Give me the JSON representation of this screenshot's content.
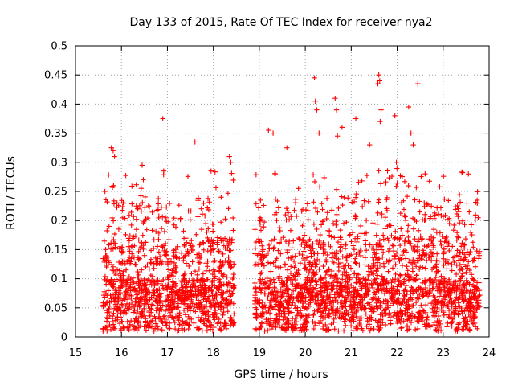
{
  "chart_data": {
    "type": "scatter",
    "title": "Day 133 of 2015, Rate Of TEC Index for receiver nya2",
    "xlabel": "GPS time / hours",
    "ylabel": "ROTI / TECUs",
    "xlim": [
      15,
      24
    ],
    "ylim": [
      0,
      0.5
    ],
    "xticks": [
      15,
      16,
      17,
      18,
      19,
      20,
      21,
      22,
      23,
      24
    ],
    "yticks": [
      0,
      0.05,
      0.1,
      0.15,
      0.2,
      0.25,
      0.3,
      0.35,
      0.4,
      0.45,
      0.5
    ],
    "ytick_labels": [
      "0",
      "0.05",
      "0.1",
      "0.15",
      "0.2",
      "0.25",
      "0.3",
      "0.35",
      "0.4",
      "0.45",
      "0.5"
    ],
    "grid": true,
    "marker": "+",
    "marker_color": "#ff0000",
    "segments": [
      {
        "x_start": 15.6,
        "x_end": 18.45
      },
      {
        "x_start": 18.9,
        "x_end": 23.8
      }
    ],
    "outliers": [
      {
        "x": 15.78,
        "y": 0.325
      },
      {
        "x": 15.82,
        "y": 0.32
      },
      {
        "x": 15.85,
        "y": 0.31
      },
      {
        "x": 15.83,
        "y": 0.26
      },
      {
        "x": 16.45,
        "y": 0.295
      },
      {
        "x": 16.9,
        "y": 0.375
      },
      {
        "x": 16.92,
        "y": 0.285
      },
      {
        "x": 17.6,
        "y": 0.335
      },
      {
        "x": 17.95,
        "y": 0.285
      },
      {
        "x": 18.35,
        "y": 0.31
      },
      {
        "x": 18.38,
        "y": 0.3
      },
      {
        "x": 19.2,
        "y": 0.355
      },
      {
        "x": 19.3,
        "y": 0.35
      },
      {
        "x": 19.6,
        "y": 0.325
      },
      {
        "x": 20.2,
        "y": 0.445
      },
      {
        "x": 20.22,
        "y": 0.405
      },
      {
        "x": 20.25,
        "y": 0.39
      },
      {
        "x": 20.3,
        "y": 0.35
      },
      {
        "x": 20.65,
        "y": 0.41
      },
      {
        "x": 20.68,
        "y": 0.39
      },
      {
        "x": 20.7,
        "y": 0.345
      },
      {
        "x": 20.8,
        "y": 0.36
      },
      {
        "x": 21.1,
        "y": 0.375
      },
      {
        "x": 21.4,
        "y": 0.33
      },
      {
        "x": 21.6,
        "y": 0.45
      },
      {
        "x": 21.62,
        "y": 0.44
      },
      {
        "x": 21.58,
        "y": 0.435
      },
      {
        "x": 21.65,
        "y": 0.39
      },
      {
        "x": 21.63,
        "y": 0.37
      },
      {
        "x": 21.95,
        "y": 0.38
      },
      {
        "x": 22.25,
        "y": 0.395
      },
      {
        "x": 22.3,
        "y": 0.35
      },
      {
        "x": 22.35,
        "y": 0.33
      },
      {
        "x": 22.45,
        "y": 0.435
      },
      {
        "x": 23.55,
        "y": 0.28
      }
    ]
  }
}
